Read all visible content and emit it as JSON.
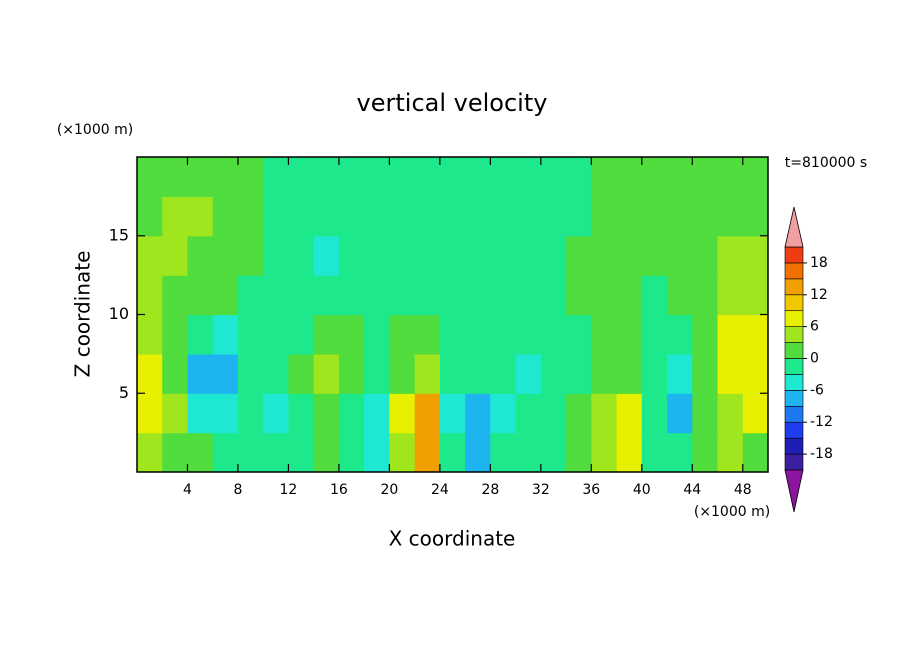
{
  "chart_data": {
    "type": "contour",
    "title": "vertical velocity",
    "x_label": "X coordinate",
    "y_label": "Z coordinate",
    "x_unit": "(×1000 m)",
    "y_unit": "(×1000 m)",
    "time_label": "t=810000 s",
    "xlim": [
      0,
      50
    ],
    "ylim": [
      0,
      20
    ],
    "xticks": [
      4,
      8,
      12,
      16,
      20,
      24,
      28,
      32,
      36,
      40,
      44,
      48
    ],
    "yticks": [
      5,
      10,
      15
    ],
    "x": [
      1,
      3,
      5,
      7,
      9,
      11,
      13,
      15,
      17,
      19,
      21,
      23,
      25,
      27,
      29,
      31,
      33,
      35,
      37,
      39,
      41,
      43,
      45,
      47,
      49
    ],
    "y": [
      1.25,
      3.75,
      6.25,
      8.75,
      11.25,
      13.75,
      16.25,
      18.75
    ],
    "z": [
      [
        4,
        2,
        0,
        -2,
        -1,
        -3,
        -1,
        1,
        -2,
        -6,
        5,
        12,
        -3,
        -8,
        -3,
        -2,
        -1,
        1,
        4,
        6,
        -1,
        -3,
        1,
        3,
        2
      ],
      [
        6,
        3,
        -4,
        -6,
        -3,
        -5,
        -2,
        2,
        -1,
        -6,
        6,
        12,
        -5,
        -9,
        -4,
        -3,
        -3,
        0,
        4,
        6,
        -3,
        -8,
        2,
        5,
        6
      ],
      [
        8,
        2,
        -8,
        -9,
        -3,
        -2,
        0,
        3,
        0,
        -1,
        2,
        5,
        -2,
        -3,
        -2,
        -4,
        -2,
        -1,
        1,
        1,
        -3,
        -4,
        2,
        6,
        8
      ],
      [
        5,
        2,
        -3,
        -4,
        -2,
        -1,
        -1,
        1,
        0,
        -1,
        0,
        0,
        -1,
        -1,
        -2,
        -3,
        -2,
        -1,
        0,
        0,
        -2,
        -1,
        2,
        6,
        7
      ],
      [
        3,
        2,
        1,
        0,
        -1,
        -1,
        -1,
        -1,
        -1,
        -1,
        -1,
        -1,
        -1,
        -1,
        -2,
        -2,
        -1,
        0,
        1,
        1,
        -1,
        0,
        2,
        4,
        5
      ],
      [
        3,
        3,
        2,
        1,
        0,
        -1,
        -3,
        -4,
        -2,
        -1,
        -1,
        -1,
        -1,
        -1,
        -1,
        -1,
        -1,
        0,
        1,
        1,
        0,
        0,
        1,
        3,
        4
      ],
      [
        2,
        3,
        3,
        2,
        0,
        -1,
        -2,
        -2,
        -1,
        -1,
        -1,
        -1,
        -1,
        -1,
        -1,
        -1,
        -1,
        -1,
        0,
        0,
        0,
        0,
        1,
        2,
        2
      ],
      [
        1,
        1,
        1,
        1,
        0,
        -1,
        -1,
        -1,
        -1,
        -1,
        -1,
        -1,
        -1,
        -1,
        -1,
        -1,
        -1,
        -1,
        0,
        0,
        0,
        0,
        0,
        1,
        1
      ]
    ],
    "levels": [
      -21,
      -18,
      -15,
      -12,
      -9,
      -6,
      -3,
      0,
      3,
      6,
      9,
      12,
      15,
      18,
      21
    ],
    "colors": [
      "#8c14a0",
      "#3c1ea0",
      "#1e1eb4",
      "#1e3cf0",
      "#1e78f0",
      "#1eb4f0",
      "#1ee8d2",
      "#1ee88c",
      "#50dc3c",
      "#a0e61e",
      "#e6f000",
      "#f0c800",
      "#f0a000",
      "#f07000",
      "#f03c14",
      "#f0a0a0"
    ],
    "colorbar_ticks": [
      -18,
      -12,
      -6,
      0,
      6,
      12,
      18
    ]
  }
}
